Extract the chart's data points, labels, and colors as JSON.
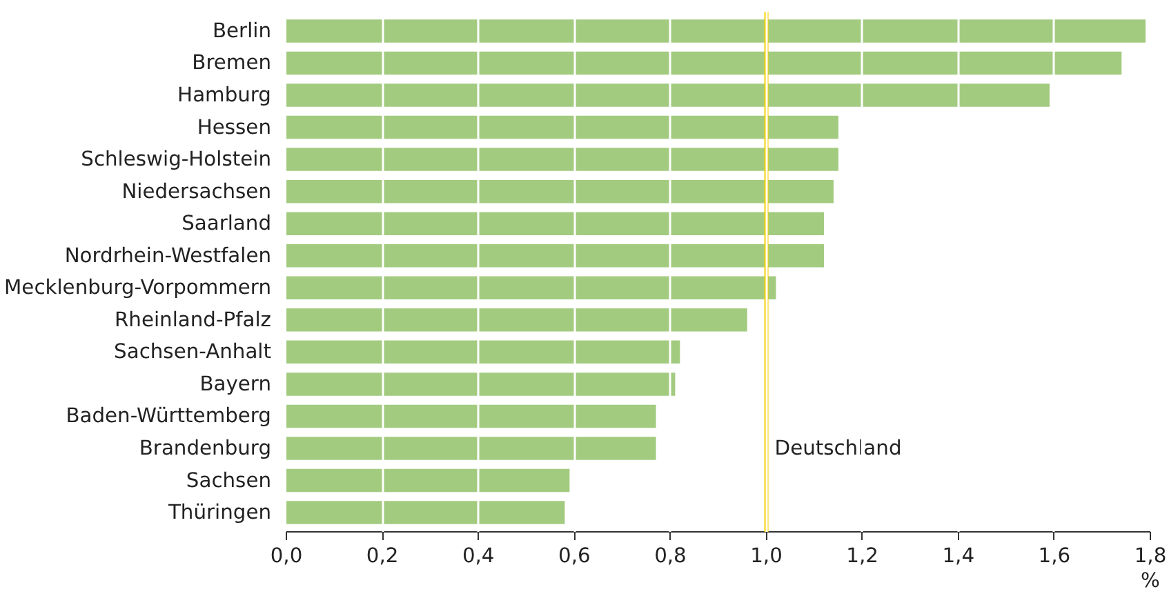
{
  "chart_data": {
    "type": "bar",
    "orientation": "horizontal",
    "xlabel": "%",
    "categories": [
      "Berlin",
      "Bremen",
      "Hamburg",
      "Hessen",
      "Schleswig-Holstein",
      "Niedersachsen",
      "Saarland",
      "Nordrhein-Westfalen",
      "Mecklenburg-Vorpommern",
      "Rheinland-Pfalz",
      "Sachsen-Anhalt",
      "Bayern",
      "Baden-Württemberg",
      "Brandenburg",
      "Sachsen",
      "Thüringen"
    ],
    "values": [
      1.79,
      1.74,
      1.59,
      1.15,
      1.15,
      1.14,
      1.12,
      1.12,
      1.02,
      0.96,
      0.82,
      0.81,
      0.77,
      0.77,
      0.59,
      0.58
    ],
    "color": "#a3cb80",
    "xlim": [
      0,
      1.8
    ],
    "xticks": [
      {
        "value": 0,
        "label": "0,0"
      },
      {
        "value": 0.2,
        "label": "0,2"
      },
      {
        "value": 0.4,
        "label": "0,4"
      },
      {
        "value": 0.6,
        "label": "0,6"
      },
      {
        "value": 0.8,
        "label": "0,8"
      },
      {
        "value": 1.0,
        "label": "1,0"
      },
      {
        "value": 1.2,
        "label": "1,2"
      },
      {
        "value": 1.4,
        "label": "1,4"
      },
      {
        "value": 1.6,
        "label": "1,6"
      },
      {
        "value": 1.8,
        "label": "1,8"
      }
    ],
    "grid": "x",
    "ref_lines": [
      {
        "axis": "x",
        "value": 1.0,
        "label": "Deutschland",
        "color": "#f5d000"
      }
    ]
  }
}
